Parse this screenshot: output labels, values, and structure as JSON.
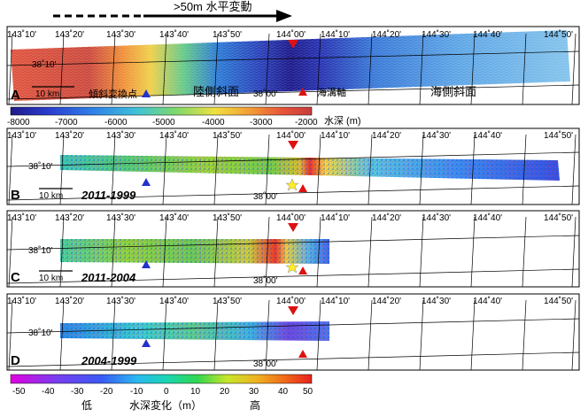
{
  "header": {
    "arrow_label": ">50m 水平変動"
  },
  "lon_ticks": [
    "143˚10'",
    "143˚20'",
    "143˚30'",
    "143˚40'",
    "143˚50'",
    "144˚00'",
    "144˚10'",
    "144˚20'",
    "144˚30'",
    "144˚40'",
    "144˚50'"
  ],
  "lat_ticks": {
    "north": "38˚10'",
    "south": "38˚00'"
  },
  "panels": [
    {
      "letter": "A",
      "scale_label": "10 km",
      "annotations": {
        "inflection": "傾斜変換点",
        "landward": "陸側斜面",
        "trench_axis": "海溝軸",
        "seaward": "海側斜面"
      }
    },
    {
      "letter": "B",
      "scale_label": "10 km",
      "period": "2011-1999"
    },
    {
      "letter": "C",
      "scale_label": "10 km",
      "period": "2011-2004"
    },
    {
      "letter": "D",
      "period": "2004-1999"
    }
  ],
  "depth_scale": {
    "ticks": [
      "-8000",
      "-7000",
      "-6000",
      "-5000",
      "-4000",
      "-3000",
      "-2000"
    ],
    "unit": "水深 (m)",
    "colors": [
      "#1f1a8a",
      "#2a3fd0",
      "#2f7fe8",
      "#3fc3d8",
      "#7fd96a",
      "#f0e040",
      "#f39a34",
      "#e8553a",
      "#c73b3b"
    ]
  },
  "change_scale": {
    "ticks": [
      "-50",
      "-40",
      "-30",
      "-20",
      "-10",
      "0",
      "10",
      "20",
      "30",
      "40",
      "50"
    ],
    "low_label": "低",
    "title": "水深変化（m）",
    "high_label": "高",
    "colors": [
      "#e000e0",
      "#7a3df0",
      "#3a5af5",
      "#2ab8f0",
      "#19d6b0",
      "#30d650",
      "#c8e62a",
      "#f0b020",
      "#f06a18",
      "#e82020"
    ]
  },
  "colors": {
    "marker_blue": "#2233cc",
    "marker_red": "#dd1111",
    "star": "#ffee22"
  }
}
